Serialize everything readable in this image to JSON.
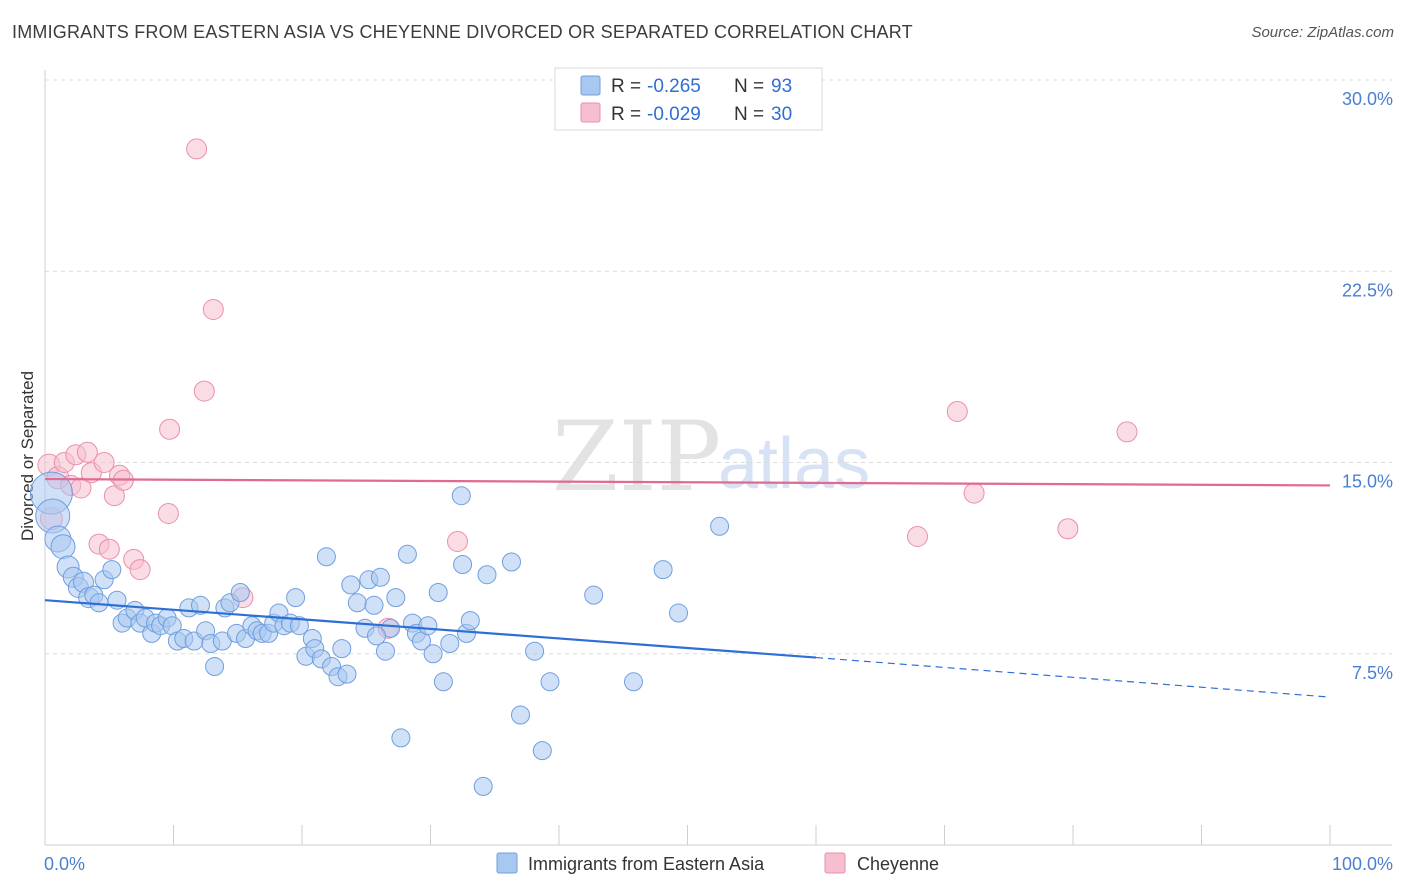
{
  "header": {
    "title": "IMMIGRANTS FROM EASTERN ASIA VS CHEYENNE DIVORCED OR SEPARATED CORRELATION CHART",
    "source": "Source: ZipAtlas.com"
  },
  "watermark": {
    "zip": "ZIP",
    "atlas": "atlas"
  },
  "legend": {
    "rows": [
      {
        "r_label": "R =",
        "r_value": "-0.265",
        "n_label": "N =",
        "n_value": "93"
      },
      {
        "r_label": "R =",
        "r_value": "-0.029",
        "n_label": "N =",
        "n_value": "30"
      }
    ]
  },
  "colors": {
    "blue_fill": "#a9c8f0",
    "blue_stroke": "#6f9fdf",
    "blue_line": "#2e6fd6",
    "pink_fill": "#f6bfd0",
    "pink_stroke": "#eb8fab",
    "pink_line": "#e06a91"
  },
  "chart_data": {
    "type": "scatter",
    "title": "IMMIGRANTS FROM EASTERN ASIA VS CHEYENNE DIVORCED OR SEPARATED CORRELATION CHART",
    "xlabel": "",
    "ylabel": "Divorced or Separated",
    "xlim": [
      0,
      100
    ],
    "ylim": [
      0,
      30.5
    ],
    "x_tick_labels": [
      "0.0%",
      "100.0%"
    ],
    "y_ticks": [
      {
        "value": 7.5,
        "label": "7.5%"
      },
      {
        "value": 15.0,
        "label": "15.0%"
      },
      {
        "value": 22.5,
        "label": "22.5%"
      },
      {
        "value": 30.0,
        "label": "30.0%"
      }
    ],
    "grid": "horizontal dashed",
    "legend_position": "top-center",
    "series": [
      {
        "name": "Immigrants from Eastern Asia",
        "color": "#a9c8f0",
        "trend": {
          "x": [
            0,
            60,
            100
          ],
          "y": [
            9.6,
            7.35,
            5.8
          ],
          "solid_until": 60
        },
        "points": [
          [
            0.5,
            13.8,
            18
          ],
          [
            0.6,
            12.9,
            14
          ],
          [
            1.0,
            12.0,
            10
          ],
          [
            1.4,
            11.7,
            9
          ],
          [
            1.8,
            10.9,
            8
          ],
          [
            2.2,
            10.5,
            7
          ],
          [
            2.6,
            10.1,
            7
          ],
          [
            3.0,
            10.3,
            7
          ],
          [
            3.4,
            9.7,
            7
          ],
          [
            3.8,
            9.8,
            6
          ],
          [
            4.2,
            9.5,
            6
          ],
          [
            4.6,
            10.4,
            6
          ],
          [
            5.2,
            10.8,
            6
          ],
          [
            5.6,
            9.6,
            6
          ],
          [
            6.0,
            8.7,
            6
          ],
          [
            6.4,
            8.9,
            6
          ],
          [
            7.0,
            9.2,
            6
          ],
          [
            7.4,
            8.7,
            6
          ],
          [
            7.8,
            8.9,
            6
          ],
          [
            8.3,
            8.3,
            6
          ],
          [
            8.6,
            8.7,
            6
          ],
          [
            9.0,
            8.6,
            6
          ],
          [
            9.5,
            8.9,
            6
          ],
          [
            9.9,
            8.6,
            6
          ],
          [
            10.3,
            8.0,
            6
          ],
          [
            10.8,
            8.1,
            6
          ],
          [
            11.2,
            9.3,
            6
          ],
          [
            11.6,
            8.0,
            6
          ],
          [
            12.1,
            9.4,
            6
          ],
          [
            12.5,
            8.4,
            6
          ],
          [
            12.9,
            7.9,
            6
          ],
          [
            13.2,
            7.0,
            6
          ],
          [
            13.8,
            8.0,
            6
          ],
          [
            14.0,
            9.3,
            6
          ],
          [
            14.4,
            9.5,
            6
          ],
          [
            14.9,
            8.3,
            6
          ],
          [
            15.2,
            9.9,
            6
          ],
          [
            15.6,
            8.1,
            6
          ],
          [
            16.1,
            8.6,
            6
          ],
          [
            16.5,
            8.4,
            6
          ],
          [
            16.9,
            8.3,
            6
          ],
          [
            17.4,
            8.3,
            6
          ],
          [
            17.8,
            8.7,
            6
          ],
          [
            18.2,
            9.1,
            6
          ],
          [
            18.6,
            8.6,
            6
          ],
          [
            19.1,
            8.7,
            6
          ],
          [
            19.5,
            9.7,
            6
          ],
          [
            19.8,
            8.6,
            6
          ],
          [
            20.3,
            7.4,
            6
          ],
          [
            20.8,
            8.1,
            6
          ],
          [
            21.0,
            7.7,
            6
          ],
          [
            21.5,
            7.3,
            6
          ],
          [
            21.9,
            11.3,
            6
          ],
          [
            22.3,
            7.0,
            6
          ],
          [
            22.8,
            6.6,
            6
          ],
          [
            23.1,
            7.7,
            6
          ],
          [
            23.5,
            6.7,
            6
          ],
          [
            23.8,
            10.2,
            6
          ],
          [
            24.3,
            9.5,
            6
          ],
          [
            24.9,
            8.5,
            6
          ],
          [
            25.2,
            10.4,
            6
          ],
          [
            25.6,
            9.4,
            6
          ],
          [
            26.1,
            10.5,
            6
          ],
          [
            26.5,
            7.6,
            6
          ],
          [
            26.9,
            8.5,
            6
          ],
          [
            27.3,
            9.7,
            6
          ],
          [
            27.7,
            4.2,
            6
          ],
          [
            28.2,
            11.4,
            6
          ],
          [
            28.6,
            8.7,
            6
          ],
          [
            28.9,
            8.3,
            6
          ],
          [
            29.3,
            8.0,
            6
          ],
          [
            29.8,
            8.6,
            6
          ],
          [
            30.2,
            7.5,
            6
          ],
          [
            30.6,
            9.9,
            6
          ],
          [
            31.0,
            6.4,
            6
          ],
          [
            32.4,
            13.7,
            6
          ],
          [
            32.5,
            11.0,
            6
          ],
          [
            32.8,
            8.3,
            6
          ],
          [
            33.1,
            8.8,
            6
          ],
          [
            34.1,
            2.3,
            6
          ],
          [
            34.4,
            10.6,
            6
          ],
          [
            36.3,
            11.1,
            6
          ],
          [
            37.0,
            5.1,
            6
          ],
          [
            38.1,
            7.6,
            6
          ],
          [
            38.7,
            3.7,
            6
          ],
          [
            39.3,
            6.4,
            6
          ],
          [
            42.7,
            9.8,
            6
          ],
          [
            45.8,
            6.4,
            6
          ],
          [
            48.1,
            10.8,
            6
          ],
          [
            49.3,
            9.1,
            6
          ],
          [
            52.5,
            12.5,
            6
          ],
          [
            25.8,
            8.2,
            6
          ],
          [
            31.5,
            7.9,
            6
          ]
        ]
      },
      {
        "name": "Cheyenne",
        "color": "#f6bfd0",
        "trend": {
          "x": [
            0,
            100
          ],
          "y": [
            14.35,
            14.1
          ]
        },
        "points": [
          [
            0.3,
            14.9,
            8
          ],
          [
            0.5,
            12.8,
            8
          ],
          [
            1.0,
            14.4,
            8
          ],
          [
            1.5,
            15.0,
            7
          ],
          [
            2.0,
            14.1,
            7
          ],
          [
            2.4,
            15.3,
            7
          ],
          [
            2.8,
            14.0,
            7
          ],
          [
            3.3,
            15.4,
            7
          ],
          [
            3.6,
            14.6,
            7
          ],
          [
            4.2,
            11.8,
            7
          ],
          [
            4.6,
            15.0,
            7
          ],
          [
            5.0,
            11.6,
            7
          ],
          [
            5.4,
            13.7,
            7
          ],
          [
            5.8,
            14.5,
            7
          ],
          [
            6.1,
            14.3,
            7
          ],
          [
            6.9,
            11.2,
            7
          ],
          [
            7.4,
            10.8,
            7
          ],
          [
            9.6,
            13.0,
            7
          ],
          [
            9.7,
            16.3,
            7
          ],
          [
            11.8,
            27.3,
            7
          ],
          [
            12.4,
            17.8,
            7
          ],
          [
            13.1,
            21.0,
            7
          ],
          [
            15.4,
            9.7,
            7
          ],
          [
            26.7,
            8.5,
            7
          ],
          [
            32.1,
            11.9,
            7
          ],
          [
            67.9,
            12.1,
            7
          ],
          [
            71.0,
            17.0,
            7
          ],
          [
            72.3,
            13.8,
            7
          ],
          [
            79.6,
            12.4,
            7
          ],
          [
            84.2,
            16.2,
            7
          ]
        ]
      }
    ]
  }
}
